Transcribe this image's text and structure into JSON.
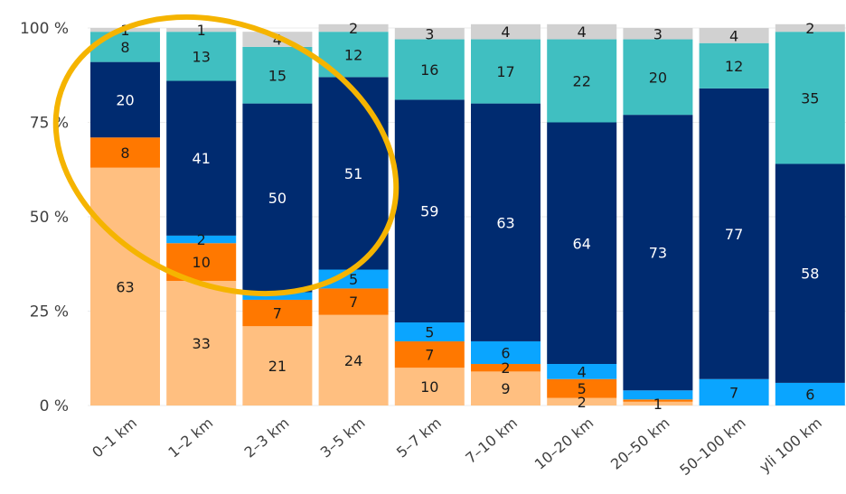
{
  "chart_data": {
    "type": "stacked-bar",
    "categories": [
      "0–1 km",
      "1–2 km",
      "2–3 km",
      "3–5 km",
      "5–7 km",
      "7–10 km",
      "10–20 km",
      "20–50 km",
      "50–100 km",
      "yli 100 km"
    ],
    "yticks": [
      "0 %",
      "25 %",
      "50 %",
      "75 %",
      "100 %"
    ],
    "ylim": [
      0,
      100
    ],
    "series": [
      {
        "color": "#ffbf80",
        "text_color": "#1a1a1a",
        "values": [
          63,
          33,
          21,
          24,
          10,
          9,
          2,
          1,
          0,
          0
        ],
        "labels": [
          "63",
          "33",
          "21",
          "24",
          "10",
          "9",
          "2",
          "1",
          "",
          ""
        ]
      },
      {
        "color": "#ff7800",
        "text_color": "#1a1a1a",
        "values": [
          8,
          10,
          7,
          7,
          7,
          2,
          5,
          0.6,
          0,
          0
        ],
        "labels": [
          "8",
          "10",
          "7",
          "7",
          "7",
          "2",
          "5",
          "",
          "",
          ""
        ]
      },
      {
        "color": "#0aa5ff",
        "text_color": "#1a1a1a",
        "values": [
          0,
          2,
          2,
          5,
          5,
          6,
          4,
          2.4,
          7,
          6
        ],
        "labels": [
          "",
          "2",
          "",
          "5",
          "5",
          "6",
          "4",
          "",
          "7",
          "6"
        ]
      },
      {
        "color": "#002b70",
        "text_color": "#ffffff",
        "values": [
          20,
          41,
          50,
          51,
          59,
          63,
          64,
          73,
          77,
          58
        ],
        "labels": [
          "20",
          "41",
          "50",
          "51",
          "59",
          "63",
          "64",
          "73",
          "77",
          "58"
        ]
      },
      {
        "color": "#40bfc1",
        "text_color": "#1a1a1a",
        "values": [
          8,
          13,
          15,
          12,
          16,
          17,
          22,
          20,
          12,
          35
        ],
        "labels": [
          "8",
          "13",
          "15",
          "12",
          "16",
          "17",
          "22",
          "20",
          "12",
          "35"
        ]
      },
      {
        "color": "#d1d1d1",
        "text_color": "#1a1a1a",
        "values": [
          1,
          1,
          4,
          2,
          3,
          4,
          4,
          3,
          4,
          2
        ],
        "labels": [
          "1",
          "1",
          "4",
          "2",
          "3",
          "4",
          "4",
          "3",
          "4",
          "2"
        ]
      }
    ],
    "annotation": {
      "shape": "ellipse",
      "color": "#f5b400",
      "covers_categories": [
        "0–1 km",
        "1–2 km",
        "2–3 km",
        "3–5 km"
      ]
    }
  }
}
